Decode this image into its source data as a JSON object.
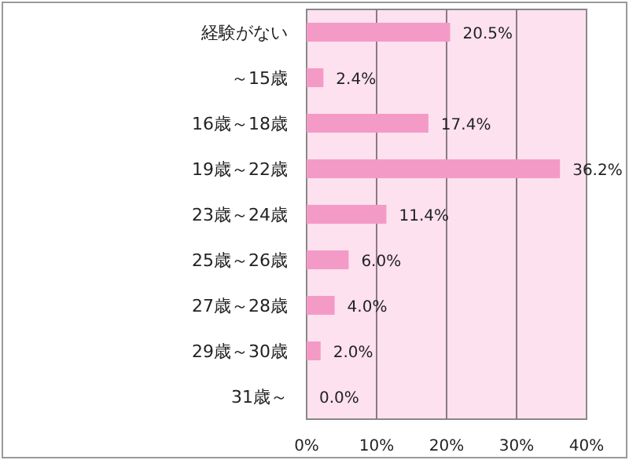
{
  "chart_data": {
    "type": "bar",
    "orientation": "horizontal",
    "categories": [
      "経験がない",
      "～15歳",
      "16歳～18歳",
      "19歳～22歳",
      "23歳～24歳",
      "25歳～26歳",
      "27歳～28歳",
      "29歳～30歳",
      "31歳～"
    ],
    "values": [
      20.5,
      2.4,
      17.4,
      36.2,
      11.4,
      6.0,
      4.0,
      2.0,
      0.0
    ],
    "value_labels": [
      "20.5%",
      "2.4%",
      "17.4%",
      "36.2%",
      "11.4%",
      "6.0%",
      "4.0%",
      "2.0%",
      "0.0%"
    ],
    "color": "#f49ac6",
    "xlim": [
      0,
      40
    ],
    "xticks": [
      {
        "value": 0,
        "label": "0%"
      },
      {
        "value": 10,
        "label": "10%"
      },
      {
        "value": 20,
        "label": "20%"
      },
      {
        "value": 30,
        "label": "30%"
      },
      {
        "value": 40,
        "label": "40%"
      }
    ],
    "grid": "x"
  }
}
